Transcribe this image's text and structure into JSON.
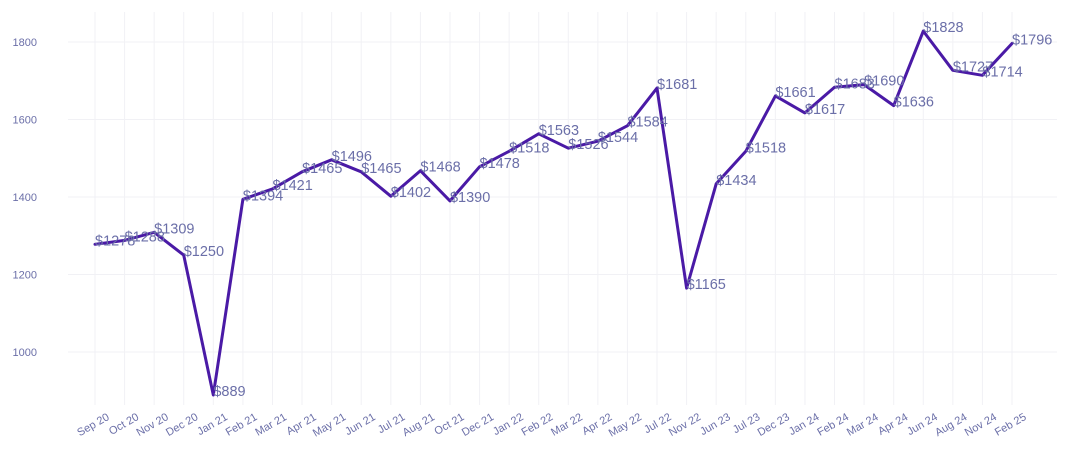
{
  "chart_data": {
    "type": "line",
    "title": "",
    "xlabel": "",
    "ylabel": "",
    "grid": true,
    "ylim": [
      860,
      1880
    ],
    "yticks": [
      1000,
      1200,
      1400,
      1600,
      1800
    ],
    "categories": [
      "Sep 20",
      "Oct 20",
      "Nov 20",
      "Dec 20",
      "Jan 21",
      "Feb 21",
      "Mar 21",
      "Apr 21",
      "May 21",
      "Jun 21",
      "Jul 21",
      "Aug 21",
      "Oct 21",
      "Dec 21",
      "Jan 22",
      "Feb 22",
      "Mar 22",
      "Apr 22",
      "May 22",
      "Jul 22",
      "Nov 22",
      "Jun 23",
      "Jul 23",
      "Dec 23",
      "Jan 24",
      "Feb 24",
      "Mar 24",
      "Apr 24",
      "Jun 24",
      "Aug 24",
      "Nov 24",
      "Feb 25"
    ],
    "series": [
      {
        "color": "#4a1aa6",
        "values": [
          1278,
          1288,
          1309,
          1250,
          889,
          1394,
          1421,
          1465,
          1496,
          1465,
          1402,
          1468,
          1390,
          1478,
          1518,
          1563,
          1526,
          1544,
          1584,
          1681,
          1165,
          1434,
          1518,
          1661,
          1617,
          1683,
          1690,
          1636,
          1828,
          1727,
          1714,
          1796
        ],
        "labels": [
          "$1278",
          "$1288",
          "$1309",
          "$1250",
          "$889",
          "$1394",
          "$1421",
          "$1465",
          "$1496",
          "$1465",
          "$1402",
          "$1468",
          "$1390",
          "$1478",
          "$1518",
          "$1563",
          "$1526",
          "$1544",
          "$1584",
          "$1681",
          "$1165",
          "$1434",
          "$1518",
          "$1661",
          "$1617",
          "$1683",
          "$1690",
          "$1636",
          "$1828",
          "$1727",
          "$1714",
          "$1796"
        ]
      }
    ]
  }
}
